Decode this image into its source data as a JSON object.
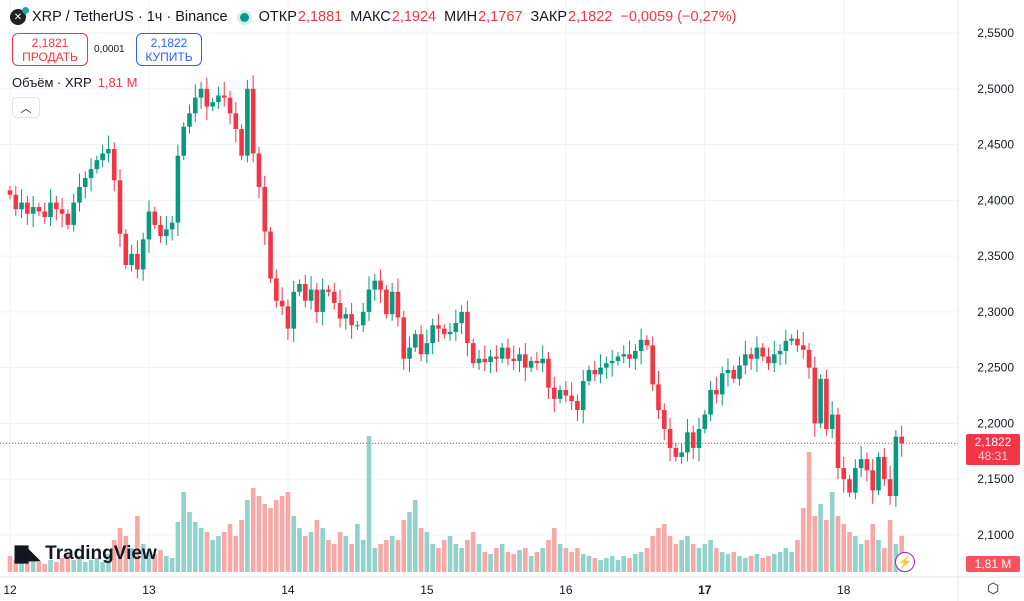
{
  "header": {
    "symbol": "XRP / TetherUS · 1ч · Binance",
    "open_label": "ОТКР",
    "open": "2,1881",
    "high_label": "МАКС",
    "high": "2,1924",
    "low_label": "МИН",
    "low": "2,1767",
    "close_label": "ЗАКР",
    "close": "2,1822",
    "change": "−0,0059 (−0,27%)"
  },
  "trade": {
    "sell_price": "2,1821",
    "sell_label": "ПРОДАТЬ",
    "spread": "0,0001",
    "buy_price": "2,1822",
    "buy_label": "КУПИТЬ"
  },
  "volume_legend": {
    "label": "Объём · XRP",
    "value": "1,81 M"
  },
  "branding": {
    "logo_text": "TradingView"
  },
  "price_label": {
    "price": "2,1822",
    "countdown": "48:31"
  },
  "volume_label": "1,81 M",
  "colors": {
    "up": "#089981",
    "down": "#f23645",
    "up_volume": "#92d2cc",
    "down_volume": "#f7a9a7"
  },
  "chart_data": {
    "type": "candlestick",
    "y_ticks": [
      "2,5500",
      "2,5000",
      "2,4500",
      "2,4000",
      "2,3500",
      "2,3000",
      "2,2500",
      "2,2000",
      "2,1500",
      "2,1000"
    ],
    "ylim": [
      2.1,
      2.55
    ],
    "x_ticks": [
      {
        "label": "12",
        "index": 0
      },
      {
        "label": "13",
        "index": 24
      },
      {
        "label": "14",
        "index": 48
      },
      {
        "label": "15",
        "index": 72
      },
      {
        "label": "16",
        "index": 96
      },
      {
        "label": "17",
        "index": 120,
        "bold": true
      },
      {
        "label": "18",
        "index": 144
      }
    ],
    "grid": true,
    "last_price": 2.1822,
    "close": [
      2.405,
      2.392,
      2.398,
      2.388,
      2.394,
      2.39,
      2.385,
      2.398,
      2.392,
      2.388,
      2.378,
      2.398,
      2.412,
      2.42,
      2.428,
      2.436,
      2.442,
      2.446,
      2.418,
      2.37,
      2.342,
      2.352,
      2.338,
      2.365,
      2.39,
      2.378,
      2.368,
      2.374,
      2.38,
      2.44,
      2.466,
      2.478,
      2.492,
      2.5,
      2.484,
      2.488,
      2.494,
      2.492,
      2.478,
      2.464,
      2.44,
      2.5,
      2.442,
      2.412,
      2.372,
      2.33,
      2.31,
      2.305,
      2.285,
      2.318,
      2.325,
      2.31,
      2.32,
      2.3,
      2.32,
      2.318,
      2.308,
      2.294,
      2.298,
      2.288,
      2.288,
      2.3,
      2.32,
      2.328,
      2.32,
      2.298,
      2.318,
      2.295,
      2.258,
      2.268,
      2.28,
      2.262,
      2.272,
      2.288,
      2.285,
      2.28,
      2.282,
      2.29,
      2.3,
      2.272,
      2.254,
      2.258,
      2.255,
      2.26,
      2.258,
      2.268,
      2.258,
      2.256,
      2.262,
      2.25,
      2.256,
      2.254,
      2.258,
      2.232,
      2.222,
      2.23,
      2.225,
      2.22,
      2.212,
      2.238,
      2.248,
      2.244,
      2.25,
      2.254,
      2.256,
      2.26,
      2.262,
      2.258,
      2.265,
      2.275,
      2.27,
      2.235,
      2.212,
      2.195,
      2.178,
      2.17,
      2.174,
      2.192,
      2.178,
      2.195,
      2.208,
      2.23,
      2.226,
      2.245,
      2.248,
      2.24,
      2.252,
      2.262,
      2.258,
      2.268,
      2.26,
      2.254,
      2.262,
      2.265,
      2.274,
      2.276,
      2.27,
      2.266,
      2.25,
      2.2,
      2.24,
      2.195,
      2.208,
      2.16,
      2.15,
      2.138,
      2.16,
      2.168,
      2.158,
      2.14,
      2.17,
      2.15,
      2.135,
      2.1881,
      2.1822
    ],
    "volume_millions": [
      0.8,
      0.6,
      0.5,
      0.7,
      0.6,
      0.5,
      0.4,
      0.6,
      0.5,
      0.7,
      0.9,
      0.6,
      0.8,
      0.5,
      0.6,
      0.7,
      0.5,
      0.9,
      1.6,
      2.2,
      1.8,
      1.2,
      2.8,
      1.4,
      1.0,
      0.9,
      1.1,
      0.8,
      0.7,
      2.5,
      4.0,
      3.0,
      2.5,
      2.2,
      2.0,
      1.6,
      1.8,
      2.0,
      2.4,
      1.8,
      2.6,
      3.6,
      4.2,
      3.8,
      3.4,
      3.2,
      3.6,
      3.8,
      4.0,
      2.8,
      2.2,
      1.8,
      2.0,
      2.6,
      2.2,
      1.6,
      1.4,
      2.0,
      1.8,
      1.4,
      2.4,
      1.6,
      6.8,
      1.2,
      1.4,
      1.6,
      1.8,
      1.6,
      2.6,
      3.0,
      3.6,
      2.2,
      2.0,
      1.4,
      1.2,
      1.6,
      1.8,
      1.4,
      1.2,
      1.6,
      2.0,
      1.4,
      1.0,
      0.9,
      1.2,
      1.4,
      1.0,
      0.9,
      1.1,
      1.2,
      0.8,
      1.0,
      1.2,
      1.6,
      2.2,
      1.4,
      1.2,
      1.0,
      1.2,
      0.9,
      0.8,
      0.7,
      0.6,
      0.7,
      0.8,
      0.6,
      0.8,
      0.7,
      0.9,
      1.0,
      1.2,
      1.8,
      2.2,
      2.4,
      1.8,
      1.4,
      1.6,
      1.8,
      1.4,
      1.2,
      1.4,
      1.6,
      1.2,
      1.0,
      0.9,
      1.0,
      0.8,
      0.7,
      0.8,
      0.9,
      0.7,
      0.8,
      0.9,
      1.0,
      1.2,
      1.0,
      1.6,
      3.2,
      6.0,
      2.8,
      3.4,
      2.6,
      4.0,
      2.8,
      2.4,
      2.0,
      1.8,
      1.4,
      1.6,
      2.4,
      1.6,
      1.2,
      2.6,
      1.4,
      1.81
    ]
  }
}
